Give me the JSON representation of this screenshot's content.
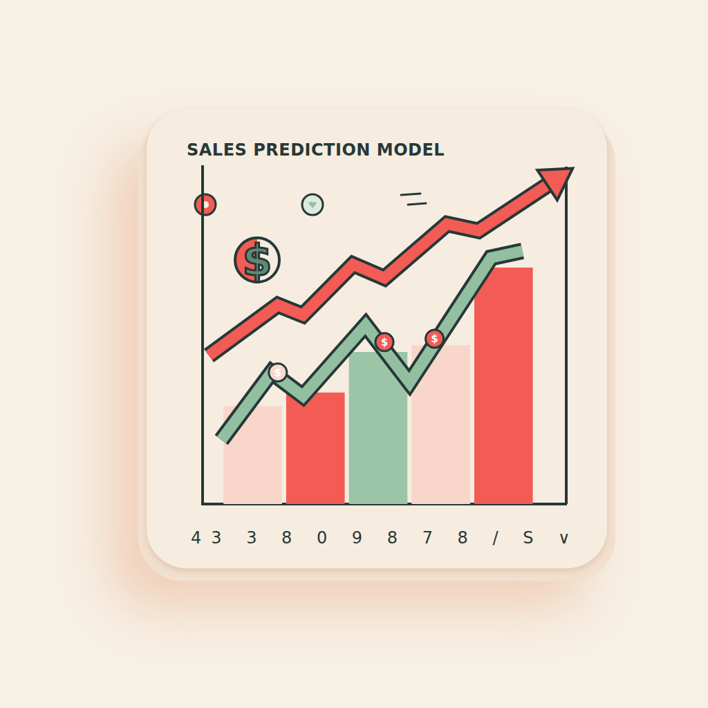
{
  "chart_data": {
    "type": "bar",
    "title": "SALES PREDICTION MODEL",
    "footer": "43 3 8 0 9 8 7 8 / S ∨",
    "symbol": "$",
    "x": [
      1,
      2,
      3,
      4,
      5
    ],
    "values": [
      29,
      33,
      45,
      47,
      70
    ],
    "colors": [
      "#f9d6ca",
      "#f25c54",
      "#9cc5a8",
      "#f9d6ca",
      "#f25c54"
    ],
    "series": [
      {
        "type": "line",
        "color": "#f25c54",
        "marker": "arrow",
        "x": [
          0.3,
          1.4,
          1.8,
          2.6,
          3.1,
          4.1,
          4.6,
          5.9
        ],
        "values": [
          44,
          59,
          56,
          71,
          67,
          83,
          81,
          97
        ]
      },
      {
        "type": "line",
        "color": "#93bfa1",
        "marker": "none",
        "x": [
          0.5,
          1.3,
          1.8,
          2.8,
          3.5,
          4.8,
          5.3
        ],
        "values": [
          19,
          39,
          32,
          53,
          36,
          73,
          75
        ]
      },
      {
        "type": "scatter",
        "marker": "coin",
        "colors": [
          "#f7d9cc",
          "#f25c54",
          "#f25c54"
        ],
        "x": [
          1.4,
          3.1,
          3.9
        ],
        "values": [
          39,
          48,
          49
        ]
      }
    ],
    "xlim": [
      0.2,
      6
    ],
    "ylim": [
      0,
      100
    ],
    "tick_labels": false,
    "grid": false
  }
}
